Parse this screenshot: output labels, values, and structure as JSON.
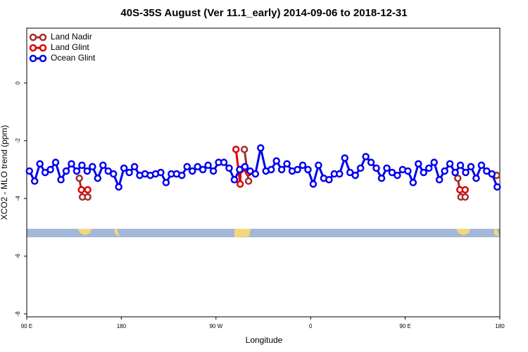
{
  "chart_data": {
    "type": "line",
    "title": "40S-35S August (Ver 11.1_early)   2014-09-06 to 2018-12-31",
    "x_label": "Longitude",
    "y_label": "XCO2 - MLO trend (ppm)",
    "xlim": [
      90,
      540
    ],
    "ylim": [
      -8.1,
      1.9
    ],
    "xticks": [
      {
        "value": 90,
        "label": "90 E"
      },
      180,
      {
        "value": 270,
        "label": "90 W"
      },
      {
        "value": 360,
        "label": "0"
      },
      {
        "value": 450,
        "label": "90 E"
      },
      {
        "value": 540,
        "label": "180"
      }
    ],
    "yticks": [
      -8,
      -6,
      -4,
      -2,
      0
    ],
    "legend": "top-left",
    "series": [
      {
        "name": "Land Nadir",
        "color": "#a03030",
        "x": [
          140,
          143,
          148,
          null,
          297,
          301,
          null,
          500,
          503,
          507,
          null,
          537
        ],
        "values": [
          -3.3,
          -3.95,
          -3.95,
          null,
          -2.3,
          -3.4,
          null,
          -3.3,
          -3.95,
          -3.95,
          null,
          -3.2
        ]
      },
      {
        "name": "Land Glint",
        "color": "#e00000",
        "x": [
          142,
          148,
          null,
          289,
          293,
          293.5,
          301,
          null,
          502,
          507
        ],
        "values": [
          -3.7,
          -3.7,
          null,
          -2.3,
          -3.5,
          -3.0,
          -3.1,
          null,
          -3.7,
          -3.7
        ]
      },
      {
        "name": "Ocean Glint",
        "color": "#0000ee",
        "x": [
          92.5,
          97.5,
          102.5,
          107.5,
          112.5,
          117.5,
          122.5,
          127.5,
          132.5,
          137.5,
          142.5,
          147.5,
          152.5,
          157.5,
          162.5,
          167.5,
          172.5,
          177.5,
          182.5,
          187.5,
          192.5,
          197.5,
          202.5,
          207.5,
          212.5,
          217.5,
          222.5,
          227.5,
          232.5,
          237.5,
          242.5,
          247.5,
          252.5,
          257.5,
          262.5,
          267.5,
          272.5,
          277.5,
          282.5,
          287.5,
          292.5,
          297.5,
          302.5,
          307.5,
          312.5,
          317.5,
          322.5,
          327.5,
          332.5,
          337.5,
          342.5,
          347.5,
          352.5,
          357.5,
          362.5,
          367.5,
          372.5,
          377.5,
          382.5,
          387.5,
          392.5,
          397.5,
          402.5,
          407.5,
          412.5,
          417.5,
          422.5,
          427.5,
          432.5,
          437.5,
          442.5,
          447.5,
          452.5,
          457.5,
          462.5,
          467.5,
          472.5,
          477.5,
          482.5,
          487.5,
          492.5,
          497.5,
          502.5,
          507.5,
          512.5,
          517.5,
          522.5,
          527.5,
          532.5,
          537.5
        ],
        "values": [
          -3.05,
          -3.4,
          -2.8,
          -3.1,
          -3.0,
          -2.75,
          -3.35,
          -3.05,
          -2.8,
          -3.05,
          -2.85,
          -3.05,
          -2.9,
          -3.3,
          -2.85,
          -3.05,
          -3.15,
          -3.6,
          -2.95,
          -3.1,
          -2.9,
          -3.2,
          -3.15,
          -3.2,
          -3.15,
          -3.1,
          -3.45,
          -3.15,
          -3.15,
          -3.2,
          -2.9,
          -3.05,
          -2.9,
          -3.0,
          -2.85,
          -3.05,
          -2.75,
          -2.75,
          -2.95,
          -3.35,
          -3.0,
          -2.9,
          -3.05,
          -3.15,
          -2.25,
          -3.05,
          -3.0,
          -2.7,
          -3.0,
          -2.8,
          -3.05,
          -3.0,
          -2.85,
          -3.0,
          -3.5,
          -2.85,
          -3.3,
          -3.35,
          -3.15,
          -3.15,
          -2.6,
          -3.1,
          -3.2,
          -2.95,
          -2.55,
          -2.75,
          -2.95,
          -3.3,
          -2.95,
          -3.1,
          -3.2,
          -3.0,
          -3.05,
          -3.45,
          -2.8,
          -3.1,
          -2.95,
          -2.75,
          -3.35,
          -3.05,
          -2.8,
          -3.1,
          -2.85,
          -3.1,
          -2.9,
          -3.3,
          -2.85,
          -3.05,
          -3.15,
          -3.6
        ]
      }
    ]
  }
}
